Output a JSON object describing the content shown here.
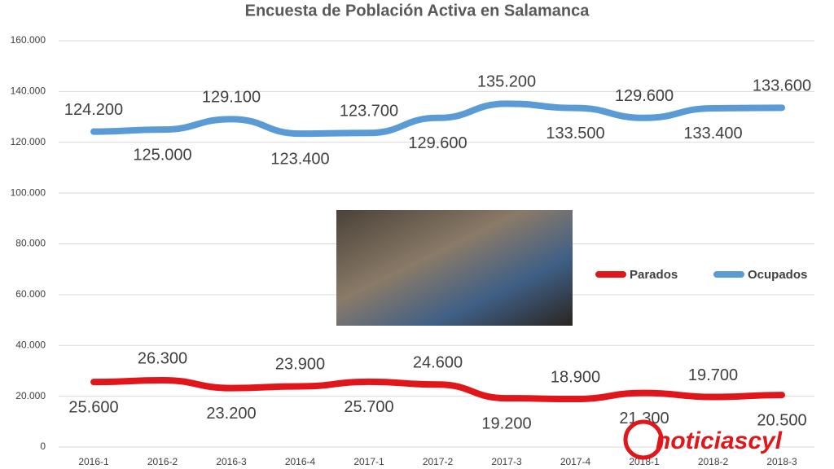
{
  "chart_data": {
    "type": "line",
    "title": "Encuesta de Población Activa en Salamanca",
    "categories": [
      "2016-1",
      "2016-2",
      "2016-3",
      "2016-4",
      "2017-1",
      "2017-2",
      "2017-3",
      "2017-4",
      "2018-1",
      "2018-2",
      "2018-3"
    ],
    "series": [
      {
        "name": "Parados",
        "color": "#e0161b",
        "values": [
          25600,
          26300,
          23200,
          23900,
          25700,
          24600,
          19200,
          18900,
          21300,
          19700,
          20500
        ],
        "value_labels": [
          "25.600",
          "26.300",
          "23.200",
          "23.900",
          "25.700",
          "24.600",
          "19.200",
          "18.900",
          "21.300",
          "19.700",
          "20.500"
        ]
      },
      {
        "name": "Ocupados",
        "color": "#5b9bd5",
        "values": [
          124200,
          125000,
          129100,
          123400,
          123700,
          129600,
          135200,
          133500,
          129600,
          133400,
          133600
        ],
        "value_labels": [
          "124.200",
          "125.000",
          "129.100",
          "123.400",
          "123.700",
          "129.600",
          "135.200",
          "133.500",
          "129.600",
          "133.400",
          "133.600"
        ]
      }
    ],
    "ylim": [
      0,
      160000
    ],
    "yticks": [
      0,
      {
        "value": 20000,
        "label": "20.000"
      },
      {
        "value": 40000,
        "label": "40.000"
      },
      {
        "value": 60000,
        "label": "60.000"
      },
      {
        "value": 80000,
        "label": "80.000"
      },
      {
        "value": 100000,
        "label": "100.000"
      },
      {
        "value": 120000,
        "label": "120.000"
      },
      {
        "value": 140000,
        "label": "140.000"
      },
      {
        "value": 160000,
        "label": "160.000"
      }
    ],
    "grid": true,
    "legend": "right"
  },
  "logo": "noticiascyl"
}
